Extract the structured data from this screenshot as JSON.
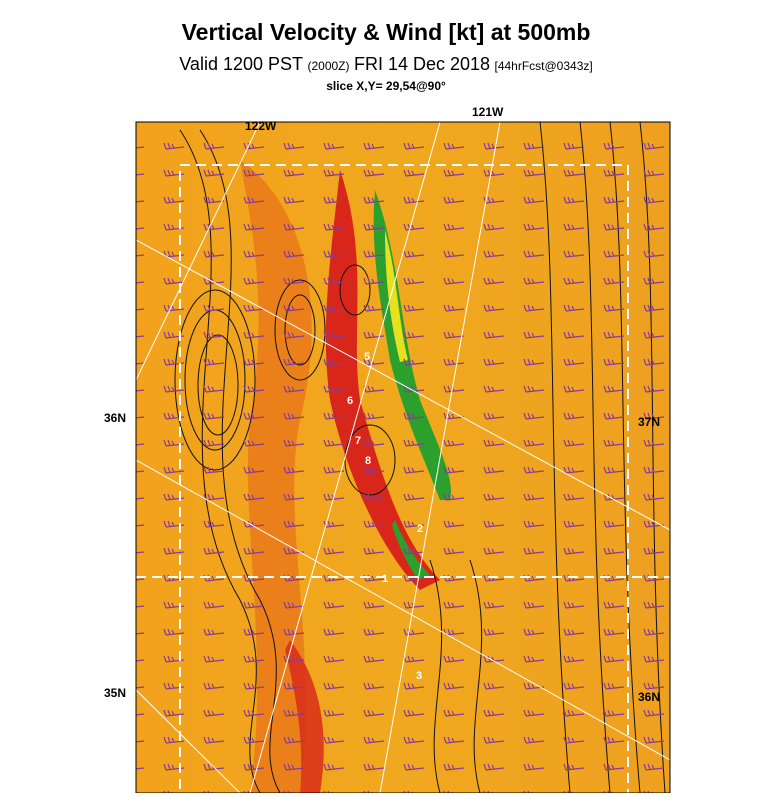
{
  "header": {
    "title": "Vertical Velocity & Wind [kt] at 500mb",
    "valid": "Valid 1200 PST",
    "utc": "(2000Z)",
    "date": "FRI 14 Dec 2018",
    "forecast": "[44hrFcst@0343z]",
    "slice": "slice X,Y= 29,54@90°"
  },
  "map": {
    "lon_labels": [
      "122W",
      "121W"
    ],
    "lat_labels_left": [
      "36N",
      "35N"
    ],
    "lat_labels_right": [
      "37N",
      "36N"
    ],
    "slice_points": [
      "5",
      "6",
      "7",
      "8",
      "2",
      "1",
      "3"
    ]
  }
}
